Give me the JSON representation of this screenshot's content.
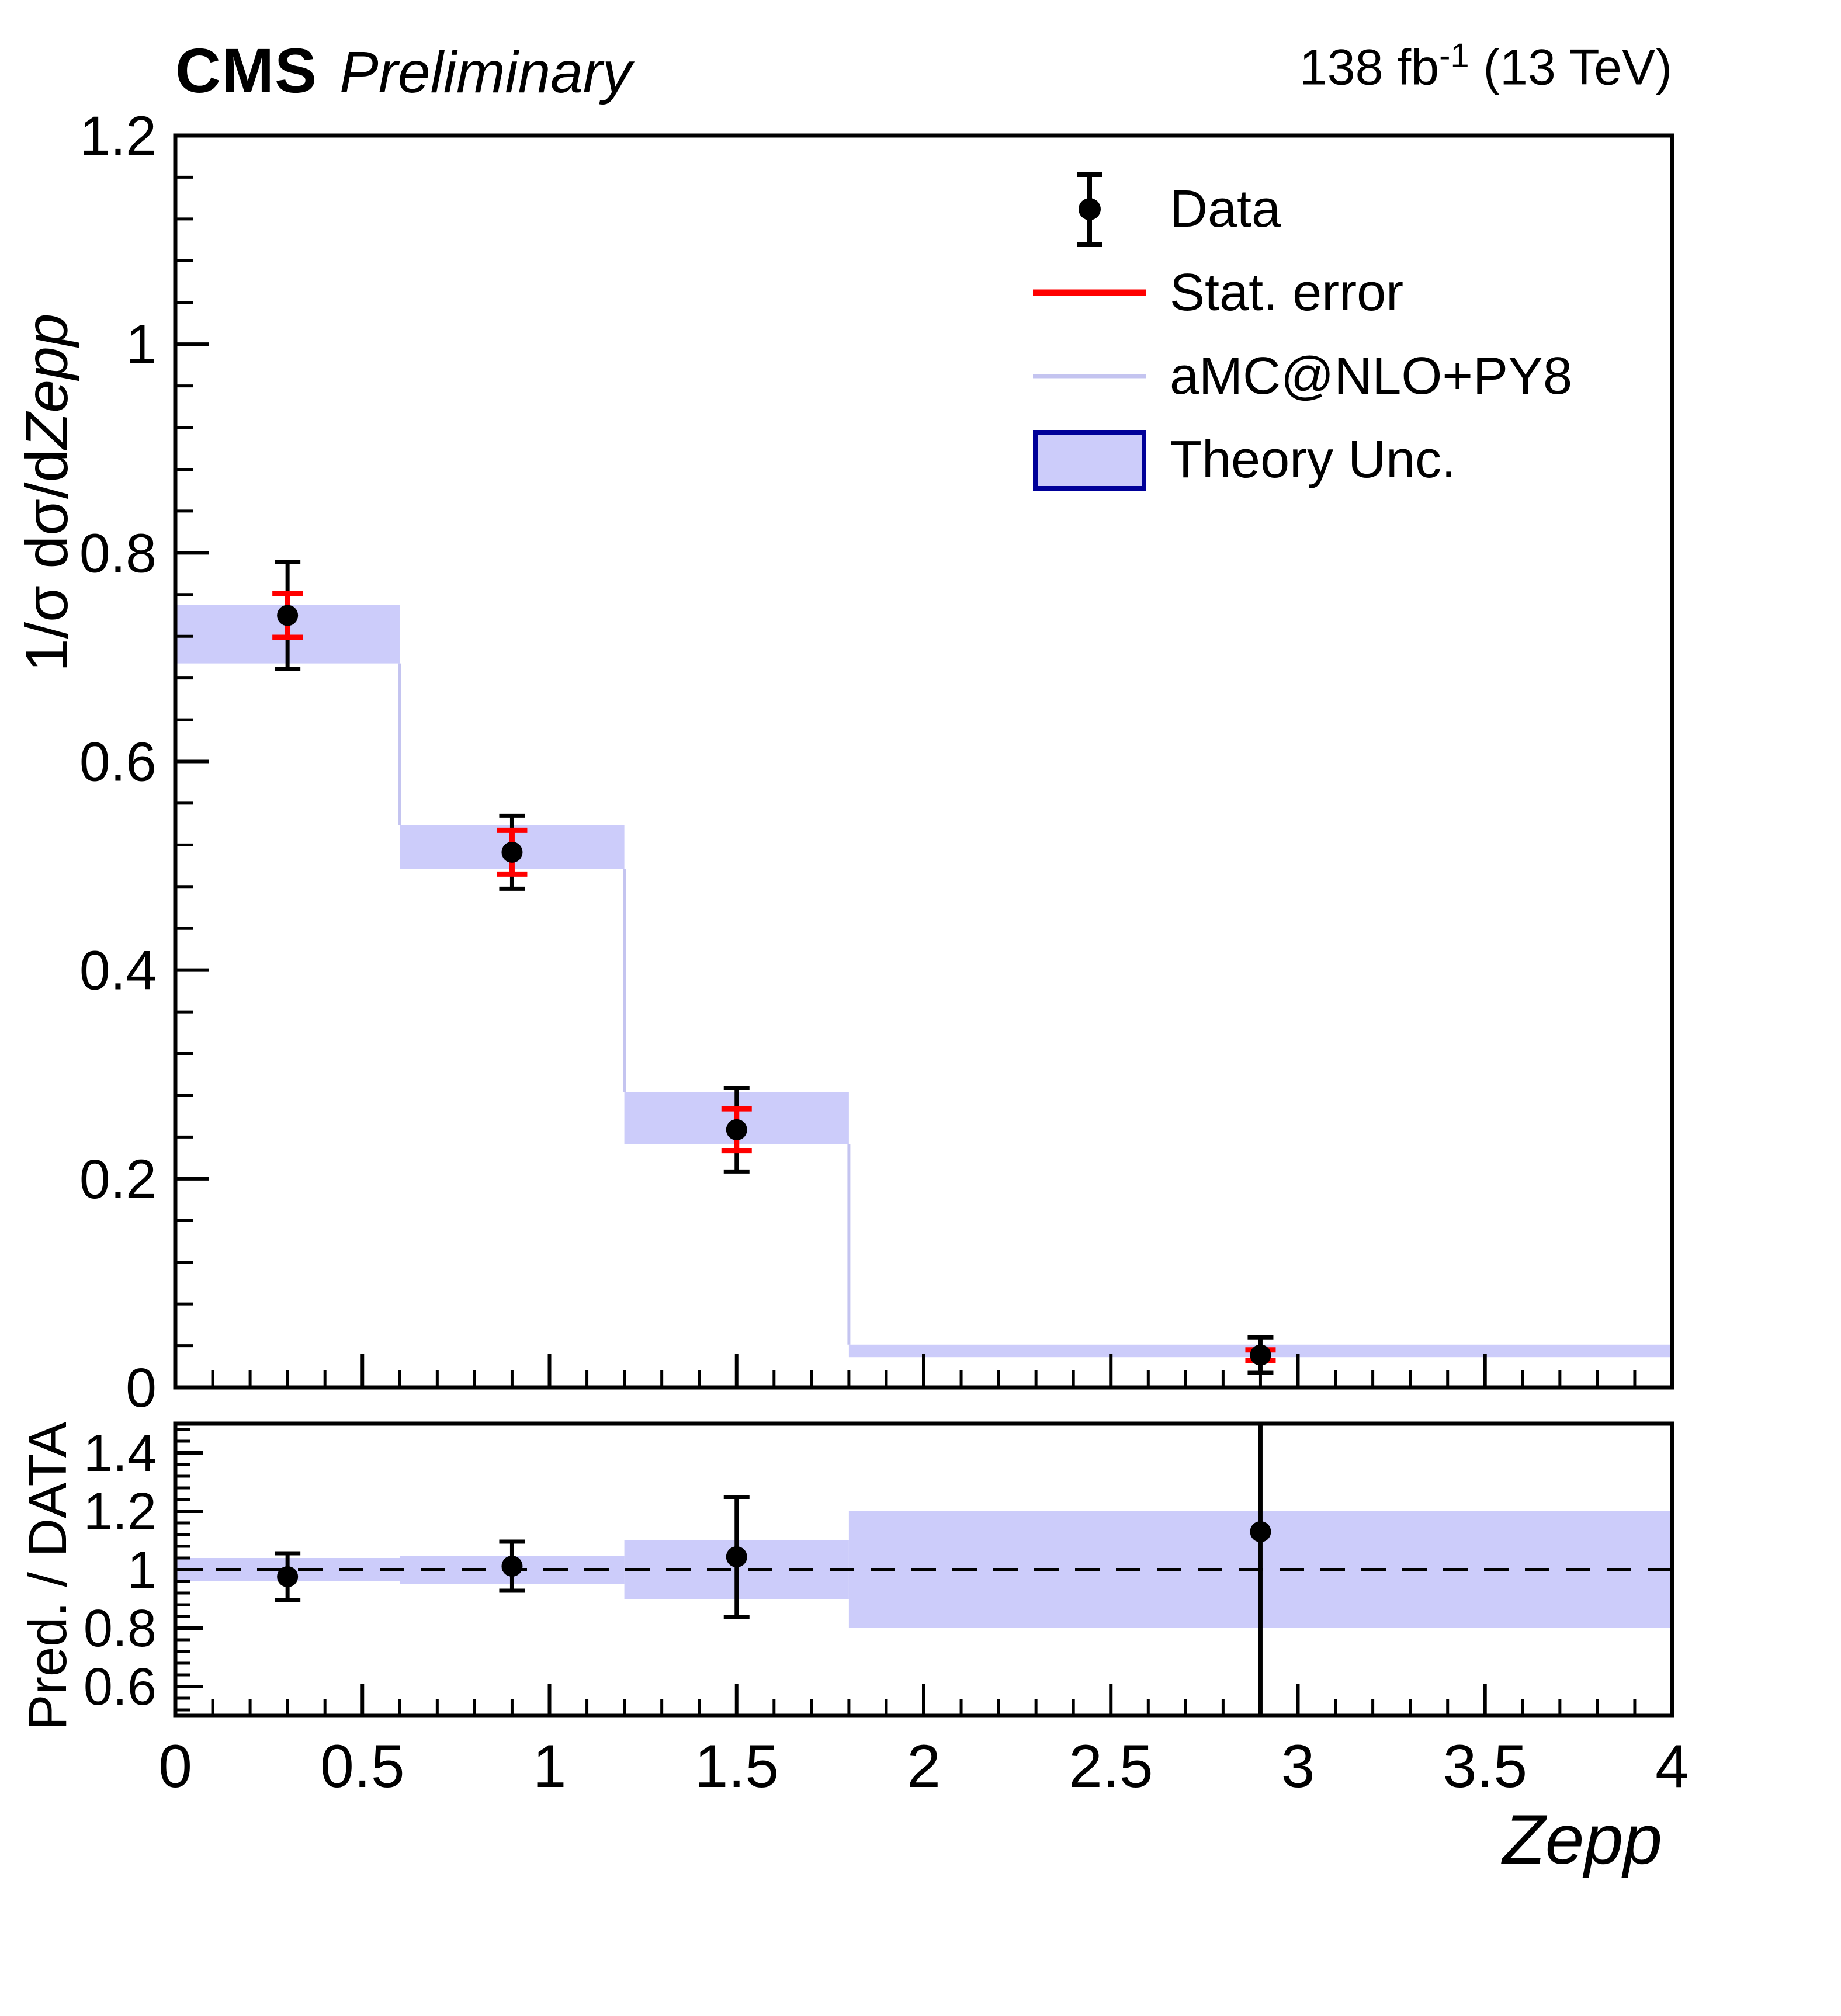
{
  "header": {
    "experiment": "CMS",
    "status": "Preliminary",
    "lumi_prefix": "138 fb",
    "lumi_sup": "-1",
    "lumi_suffix": " (13 TeV)"
  },
  "colors": {
    "band": "#ccccfa",
    "mc_line": "#c4c4f0",
    "stat_error": "#ff0000",
    "legend_box_border": "#000099",
    "foreground": "#000000"
  },
  "legend": {
    "position": "top-right",
    "items": [
      {
        "label": "Data",
        "icon": "data-marker-icon"
      },
      {
        "label": "Stat. error",
        "icon": "stat-error-line-icon"
      },
      {
        "label": "aMC@NLO+PY8",
        "icon": "mc-prediction-line-icon"
      },
      {
        "label": "Theory Unc.",
        "icon": "theory-uncertainty-box-icon"
      }
    ]
  },
  "axis_titles": {
    "main_y_prefix": "1/σ dσ/d",
    "main_y_italic": "Zepp",
    "ratio_y": "Pred. / DATA",
    "x_italic": "Zepp"
  },
  "chart_data": [
    {
      "type": "line",
      "name": "main-distribution",
      "title": "CMS Preliminary, 138 fb^-1 (13 TeV)",
      "xlabel": "Zepp",
      "ylabel": "1/σ dσ/dZepp",
      "xlim": [
        0,
        4
      ],
      "ylim": [
        0,
        1.2
      ],
      "grid": false,
      "legend_position": "top-right",
      "bin_edges": [
        0,
        0.6,
        1.2,
        1.8,
        4.0
      ],
      "series": [
        {
          "name": "aMC@NLO+PY8",
          "type": "step-with-band",
          "values": [
            0.722,
            0.518,
            0.258,
            0.035
          ],
          "band_low": [
            0.694,
            0.497,
            0.233,
            0.029
          ],
          "band_high": [
            0.75,
            0.539,
            0.283,
            0.041
          ]
        },
        {
          "name": "Data",
          "type": "points",
          "x": [
            0.3,
            0.9,
            1.5,
            2.9
          ],
          "y": [
            0.74,
            0.513,
            0.247,
            0.031
          ],
          "stat_err": [
            0.021,
            0.021,
            0.02,
            0.005
          ],
          "total_err": [
            0.051,
            0.035,
            0.04,
            0.017
          ]
        }
      ],
      "yticks": {
        "values": [
          0,
          0.2,
          0.4,
          0.6,
          0.8,
          1,
          1.2
        ],
        "labels": [
          "0",
          "0.2",
          "0.4",
          "0.6",
          "0.8",
          "1",
          "1.2"
        ],
        "minor_step": 0.04
      },
      "xticks": {
        "values": [
          0,
          0.5,
          1,
          1.5,
          2,
          2.5,
          3,
          3.5,
          4
        ],
        "labels": [
          "0",
          "0.5",
          "1",
          "1.5",
          "2",
          "2.5",
          "3",
          "3.5",
          "4"
        ],
        "minor_step": 0.1,
        "labels_shown": false
      }
    },
    {
      "type": "line",
      "name": "ratio",
      "xlabel": "Zepp",
      "ylabel": "Pred. / DATA",
      "xlim": [
        0,
        4
      ],
      "ylim": [
        0.5,
        1.5
      ],
      "grid": false,
      "reference_line": 1.0,
      "bin_edges": [
        0,
        0.6,
        1.2,
        1.8,
        4.0
      ],
      "band_low": [
        0.96,
        0.952,
        0.9,
        0.8
      ],
      "band_high": [
        1.04,
        1.046,
        1.1,
        1.2
      ],
      "points": {
        "x": [
          0.3,
          0.9,
          1.5,
          2.9
        ],
        "y": [
          0.976,
          1.012,
          1.044,
          1.13
        ],
        "err": [
          0.08,
          0.084,
          0.205,
          0.66
        ]
      },
      "yticks": {
        "values": [
          0.6,
          0.8,
          1,
          1.2,
          1.4
        ],
        "labels": [
          "0.6",
          "0.8",
          "1",
          "1.2",
          "1.4"
        ],
        "minor_step": 0.04
      },
      "xticks": {
        "values": [
          0,
          0.5,
          1,
          1.5,
          2,
          2.5,
          3,
          3.5,
          4
        ],
        "labels": [
          "0",
          "0.5",
          "1",
          "1.5",
          "2",
          "2.5",
          "3",
          "3.5",
          "4"
        ],
        "minor_step": 0.1,
        "labels_shown": true
      }
    }
  ]
}
